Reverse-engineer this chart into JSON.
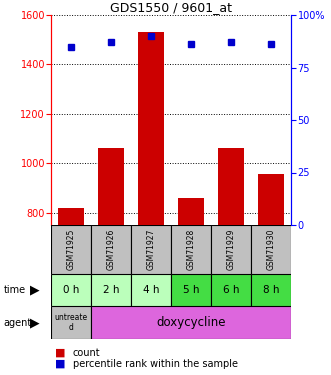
{
  "title": "GDS1550 / 9601_at",
  "samples": [
    "GSM71925",
    "GSM71926",
    "GSM71927",
    "GSM71928",
    "GSM71929",
    "GSM71930"
  ],
  "counts": [
    820,
    1060,
    1530,
    860,
    1060,
    955
  ],
  "percentiles": [
    85,
    87,
    90,
    86,
    87,
    86
  ],
  "time_labels": [
    "0 h",
    "2 h",
    "4 h",
    "5 h",
    "6 h",
    "8 h"
  ],
  "ylim_left": [
    750,
    1600
  ],
  "ylim_right": [
    0,
    100
  ],
  "yticks_left": [
    800,
    1000,
    1200,
    1400,
    1600
  ],
  "yticks_right": [
    0,
    25,
    50,
    75,
    100
  ],
  "bar_color": "#cc0000",
  "dot_color": "#0000cc",
  "bar_bottom": 750,
  "sample_bg": "#c0c0c0",
  "time_colors": [
    "#bbffbb",
    "#bbffbb",
    "#bbffbb",
    "#44dd44",
    "#44dd44",
    "#44dd44"
  ],
  "agent_bg_untreated": "#c0c0c0",
  "agent_bg_doxy": "#dd66dd",
  "legend_count_color": "#cc0000",
  "legend_pct_color": "#0000cc"
}
